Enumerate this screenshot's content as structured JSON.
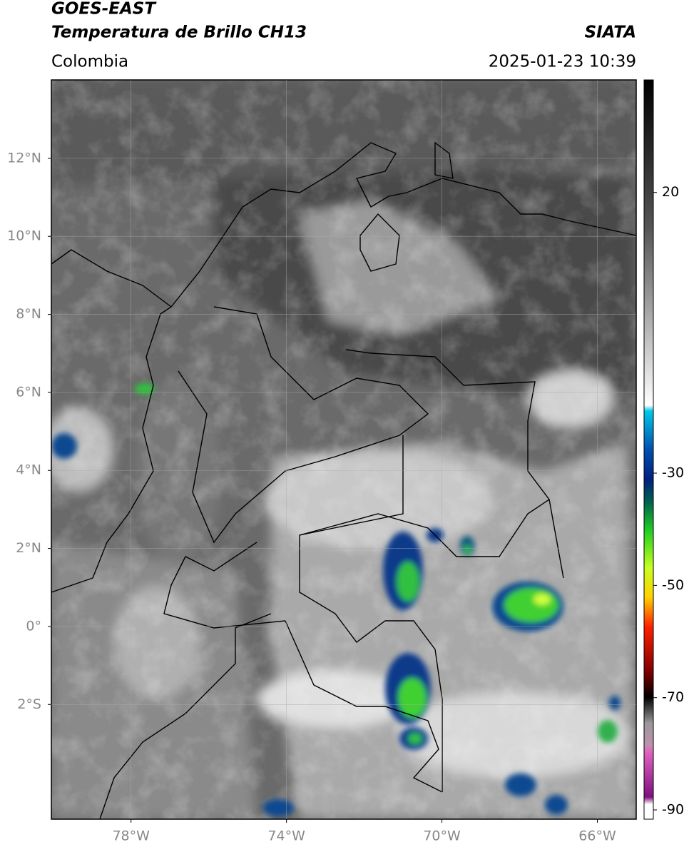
{
  "header": {
    "title": [
      "GOES-EAST",
      "Temperatura de Brillo CH13"
    ],
    "source": "SIATA",
    "region": "Colombia",
    "datetime": "2025-01-23 10:39"
  },
  "map": {
    "xlim": [
      -80.05,
      -65.0
    ],
    "ylim": [
      -4.94,
      14.01
    ],
    "xticks": [
      {
        "value": -78,
        "label": "78°W"
      },
      {
        "value": -74,
        "label": "74°W"
      },
      {
        "value": -70,
        "label": "70°W"
      },
      {
        "value": -66,
        "label": "66°W"
      }
    ],
    "yticks": [
      {
        "value": 12,
        "label": "12°N"
      },
      {
        "value": 10,
        "label": "10°N"
      },
      {
        "value": 8,
        "label": "8°N"
      },
      {
        "value": 6,
        "label": "6°N"
      },
      {
        "value": 4,
        "label": "4°N"
      },
      {
        "value": 2,
        "label": "2°N"
      },
      {
        "value": 0,
        "label": "0°"
      },
      {
        "value": -2,
        "label": "2°S"
      }
    ],
    "grid": true
  },
  "colorbar": {
    "lim": [
      40.05,
      -91.65
    ],
    "ticks": [
      20,
      -30,
      -50,
      -70,
      -90
    ]
  }
}
